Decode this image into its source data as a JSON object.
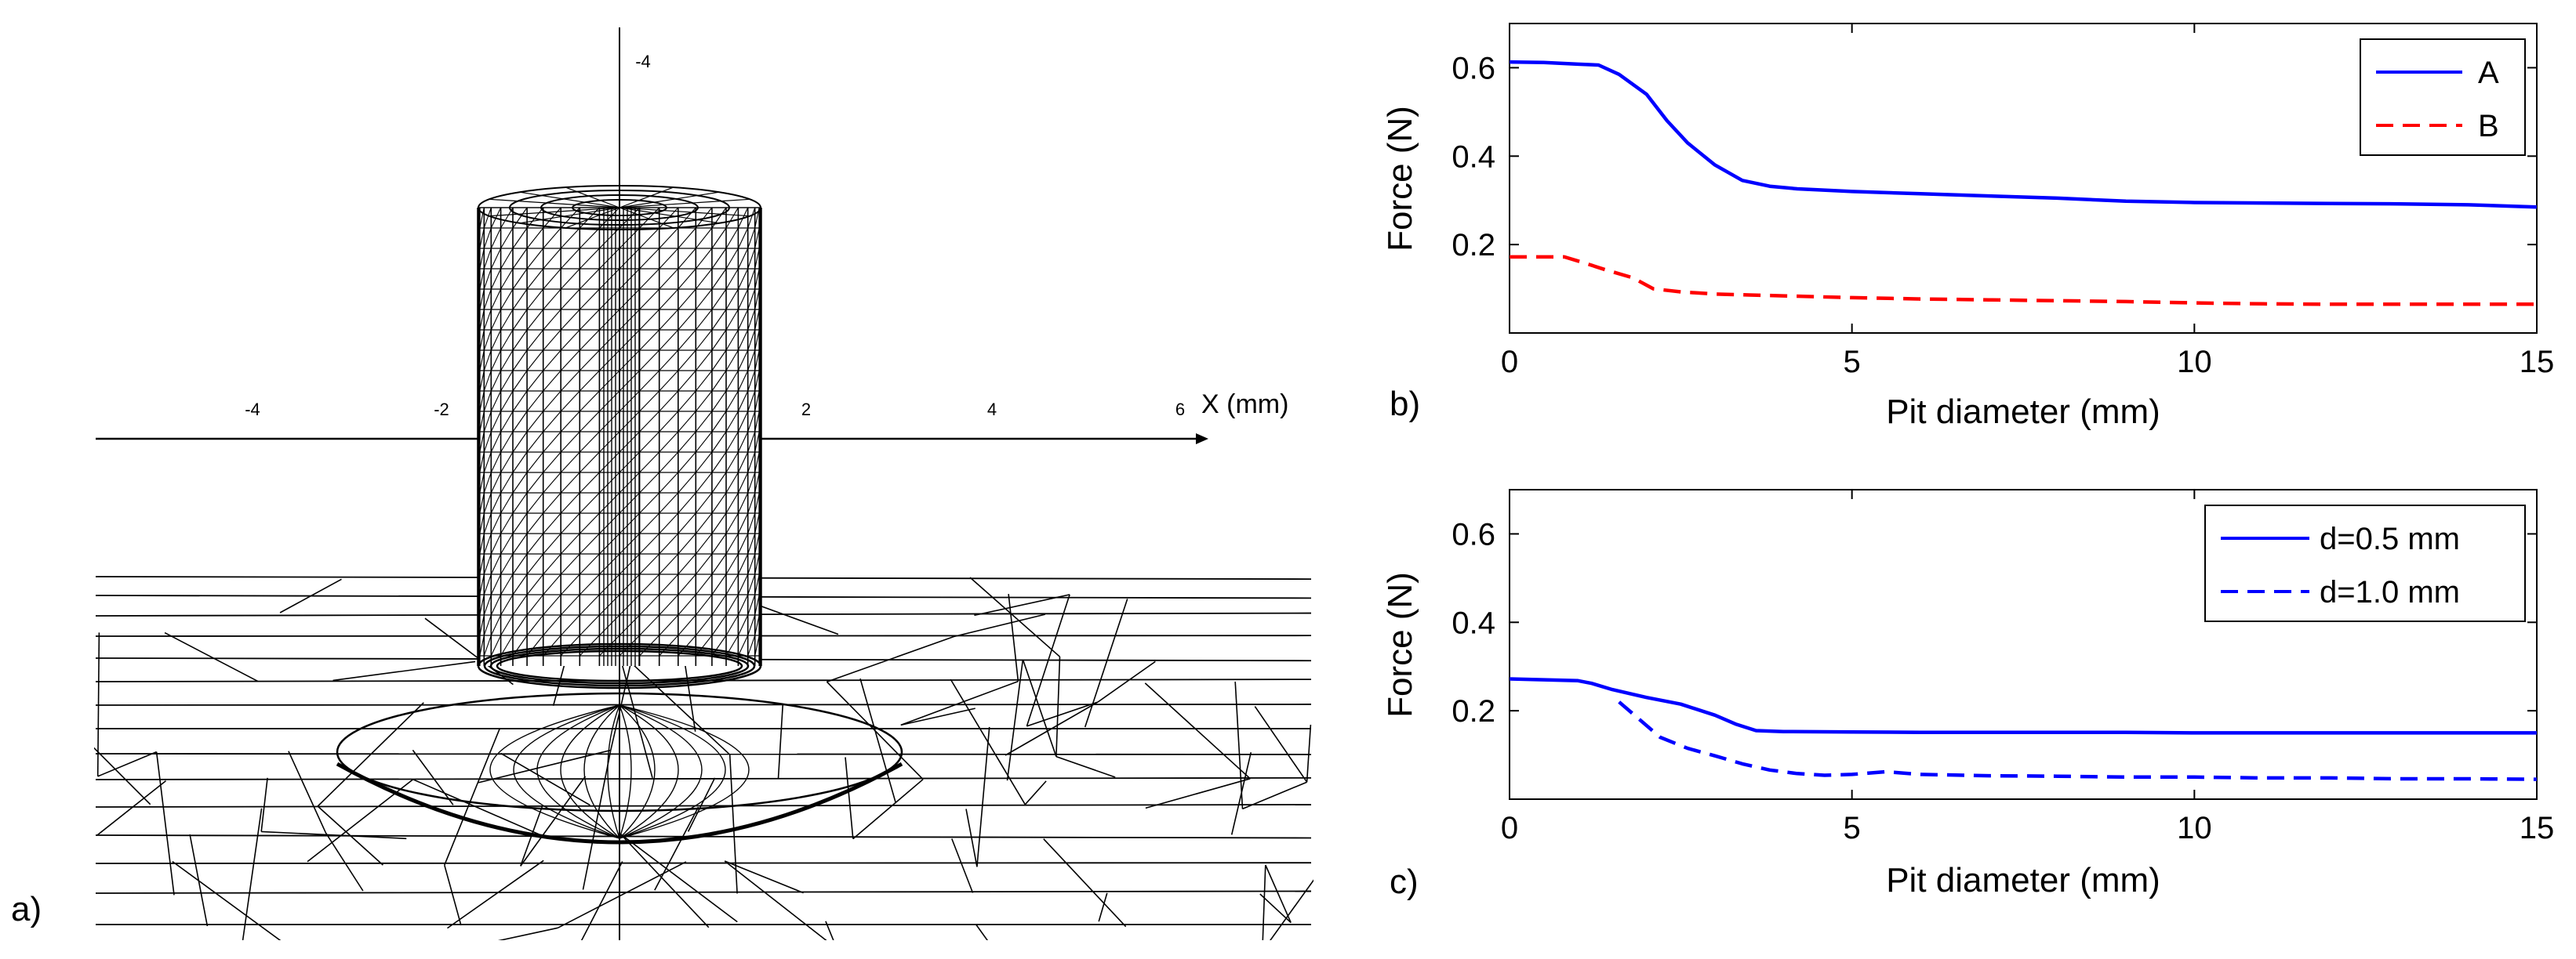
{
  "figure": {
    "panels": {
      "a": {
        "label": "a)"
      },
      "b": {
        "label": "b)"
      },
      "c": {
        "label": "c)"
      }
    }
  },
  "mesh": {
    "x_axis_label": "X (mm)",
    "x_ticks": [
      "-4",
      "-2",
      "2",
      "4",
      "6"
    ],
    "y_ticks": [
      "-4"
    ]
  },
  "colors": {
    "blue": "#0000ff",
    "red": "#ff0000",
    "black": "#000000"
  },
  "chart_data": [
    {
      "type": "line",
      "panel": "b",
      "title": "",
      "xlabel": "Pit diameter (mm)",
      "ylabel": "Force (N)",
      "xlim": [
        0,
        15
      ],
      "ylim": [
        0,
        0.7
      ],
      "xticks": [
        0,
        5,
        10,
        15
      ],
      "yticks": [
        0.2,
        0.4,
        0.6
      ],
      "xtick_labels": [
        "0",
        "5",
        "10",
        "15"
      ],
      "ytick_labels": [
        "0.2",
        "0.4",
        "0.6"
      ],
      "legend_position": "top-right",
      "series": [
        {
          "name": "A",
          "color": "#0000ff",
          "style": "solid",
          "x": [
            0,
            0.5,
            1.0,
            1.3,
            1.6,
            2.0,
            2.3,
            2.6,
            3.0,
            3.4,
            3.8,
            4.2,
            5,
            6,
            7,
            8,
            9,
            10,
            11,
            12,
            13,
            14,
            15
          ],
          "y": [
            0.613,
            0.612,
            0.608,
            0.606,
            0.585,
            0.54,
            0.48,
            0.43,
            0.38,
            0.345,
            0.332,
            0.326,
            0.32,
            0.315,
            0.31,
            0.305,
            0.298,
            0.295,
            0.294,
            0.293,
            0.292,
            0.29,
            0.285
          ]
        },
        {
          "name": "B",
          "color": "#ff0000",
          "style": "dashed",
          "x": [
            0,
            0.4,
            0.8,
            1.1,
            1.4,
            1.8,
            2.1,
            2.5,
            3.0,
            3.5,
            4,
            5,
            6,
            7,
            8,
            9,
            10,
            11,
            12,
            13,
            14,
            15
          ],
          "y": [
            0.172,
            0.172,
            0.172,
            0.158,
            0.143,
            0.125,
            0.1,
            0.093,
            0.088,
            0.086,
            0.084,
            0.08,
            0.077,
            0.075,
            0.073,
            0.071,
            0.068,
            0.066,
            0.065,
            0.065,
            0.065,
            0.065
          ]
        }
      ]
    },
    {
      "type": "line",
      "panel": "c",
      "title": "",
      "xlabel": "Pit diameter (mm)",
      "ylabel": "Force (N)",
      "xlim": [
        0,
        15
      ],
      "ylim": [
        0,
        0.7
      ],
      "xticks": [
        0,
        5,
        10,
        15
      ],
      "yticks": [
        0.2,
        0.4,
        0.6
      ],
      "xtick_labels": [
        "0",
        "5",
        "10",
        "15"
      ],
      "ytick_labels": [
        "0.2",
        "0.4",
        "0.6"
      ],
      "legend_position": "top-right",
      "series": [
        {
          "name": "d=0.5 mm",
          "color": "#0000ff",
          "style": "solid",
          "x": [
            0,
            0.5,
            1.0,
            1.2,
            1.5,
            2.0,
            2.5,
            3.0,
            3.3,
            3.6,
            4,
            5,
            6,
            7,
            8,
            9,
            10,
            11,
            12,
            13,
            14,
            15
          ],
          "y": [
            0.272,
            0.27,
            0.268,
            0.262,
            0.248,
            0.23,
            0.215,
            0.19,
            0.17,
            0.155,
            0.153,
            0.152,
            0.151,
            0.151,
            0.151,
            0.151,
            0.15,
            0.15,
            0.15,
            0.15,
            0.15,
            0.15
          ]
        },
        {
          "name": "d=1.0 mm",
          "color": "#0000ff",
          "style": "dashed",
          "x": [
            1.6,
            1.9,
            2.2,
            2.6,
            3.0,
            3.4,
            3.8,
            4.2,
            4.6,
            5.0,
            5.5,
            6,
            7,
            8,
            9,
            10,
            11,
            12,
            13,
            14,
            15
          ],
          "y": [
            0.22,
            0.18,
            0.14,
            0.115,
            0.098,
            0.08,
            0.066,
            0.058,
            0.054,
            0.056,
            0.062,
            0.056,
            0.053,
            0.052,
            0.05,
            0.05,
            0.048,
            0.048,
            0.046,
            0.046,
            0.045
          ]
        }
      ]
    }
  ]
}
